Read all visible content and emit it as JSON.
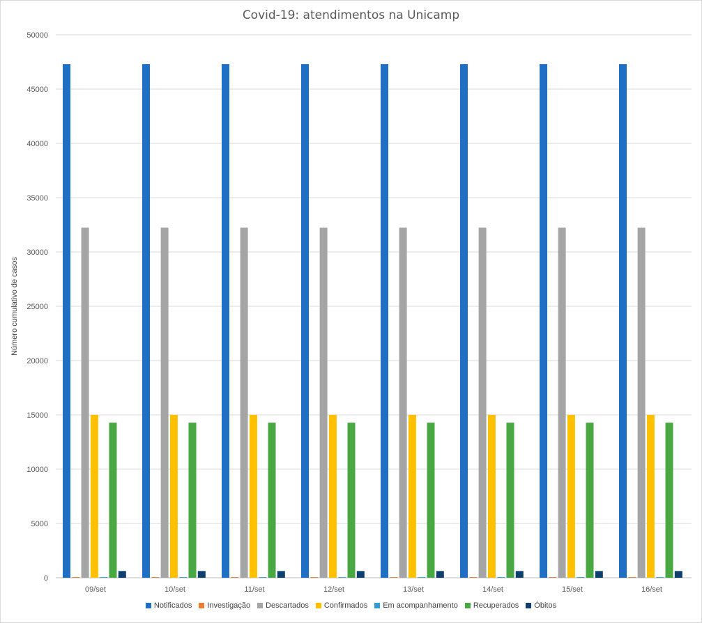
{
  "chart_data": {
    "type": "bar",
    "title": "Covid-19: atendimentos na Unicamp",
    "ylabel": "Número cumulativo de casos",
    "xlabel": "",
    "ylim": [
      0,
      50000
    ],
    "yticks": [
      0,
      5000,
      10000,
      15000,
      20000,
      25000,
      30000,
      35000,
      40000,
      45000,
      50000
    ],
    "grid": true,
    "legend_position": "bottom",
    "categories": [
      "09/set",
      "10/set",
      "11/set",
      "12/set",
      "13/set",
      "14/set",
      "15/set",
      "16/set"
    ],
    "series": [
      {
        "name": "Notificados",
        "color": "#1f6fc5",
        "values": [
          47300,
          47300,
          47300,
          47300,
          47300,
          47300,
          47300,
          47300
        ]
      },
      {
        "name": "Investigação",
        "color": "#ed7d31",
        "values": [
          60,
          60,
          60,
          60,
          60,
          60,
          60,
          60
        ]
      },
      {
        "name": "Descartados",
        "color": "#a5a5a5",
        "values": [
          32250,
          32250,
          32250,
          32250,
          32250,
          32250,
          32250,
          32250
        ]
      },
      {
        "name": "Confirmados",
        "color": "#ffc000",
        "values": [
          15000,
          15000,
          15000,
          15000,
          15000,
          15000,
          15000,
          15000
        ]
      },
      {
        "name": "Em acompanhamento",
        "color": "#2e9cd6",
        "values": [
          60,
          60,
          60,
          60,
          60,
          60,
          60,
          60
        ]
      },
      {
        "name": "Recuperados",
        "color": "#4aa843",
        "values": [
          14280,
          14280,
          14280,
          14280,
          14280,
          14280,
          14280,
          14280
        ]
      },
      {
        "name": "Óbitos",
        "color": "#0f3f6e",
        "values": [
          620,
          620,
          620,
          620,
          620,
          620,
          620,
          620
        ]
      }
    ]
  }
}
